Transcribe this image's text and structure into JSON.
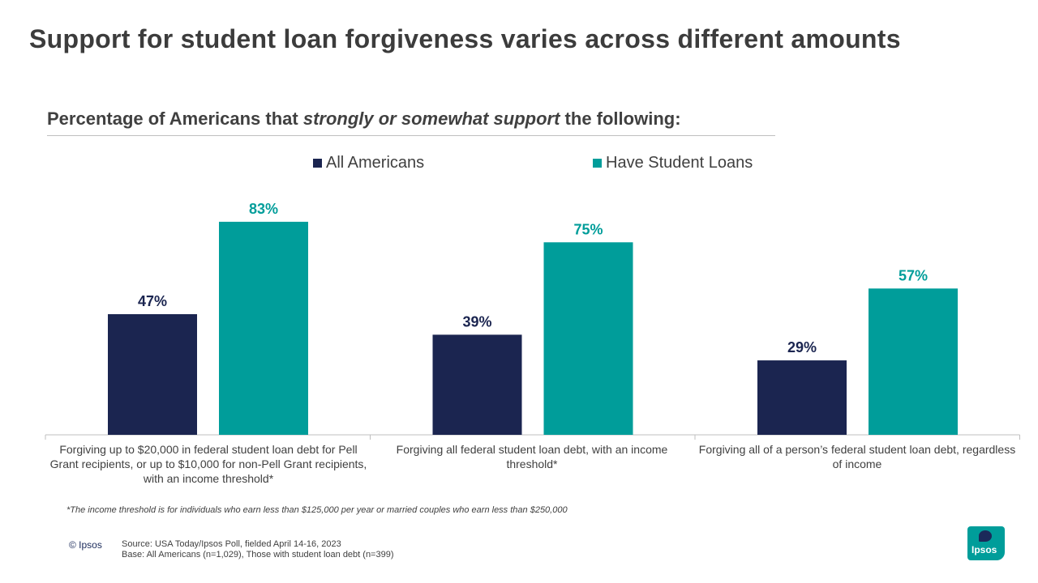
{
  "title": "Support for student loan forgiveness varies across different amounts",
  "subtitle": {
    "prefix": "Percentage of Americans that ",
    "emphasis": "strongly or somewhat support",
    "suffix": " the following:"
  },
  "colors": {
    "all_americans": "#1b2550",
    "have_student_loans": "#009d9a",
    "axis": "#bfbfbf"
  },
  "chart_data": {
    "type": "bar",
    "title": "Percentage of Americans that strongly or somewhat support the following:",
    "categories": [
      "Forgiving up to $20,000 in federal student loan debt for Pell Grant recipients, or up to $10,000 for non-Pell Grant recipients, with an income threshold*",
      "Forgiving all federal student loan debt, with an income threshold*",
      "Forgiving all of a person’s federal student loan debt, regardless of income"
    ],
    "series": [
      {
        "name": "All Americans",
        "values": [
          47,
          39,
          29
        ],
        "labels": [
          "47%",
          "39%",
          "29%"
        ]
      },
      {
        "name": "Have Student Loans",
        "values": [
          83,
          75,
          57
        ],
        "labels": [
          "83%",
          "75%",
          "57%"
        ]
      }
    ],
    "ylim": [
      0,
      100
    ],
    "grid": false,
    "legend": "top"
  },
  "footnote": "*The income threshold is for individuals who earn less than $125,000 per year or married couples who earn less than $250,000",
  "copyright": "© Ipsos",
  "source_line": "Source: USA Today/Ipsos Poll, fielded April 14-16, 2023",
  "base_line": "Base: All Americans (n=1,029), Those with student loan debt (n=399)",
  "logo_text": "Ipsos"
}
